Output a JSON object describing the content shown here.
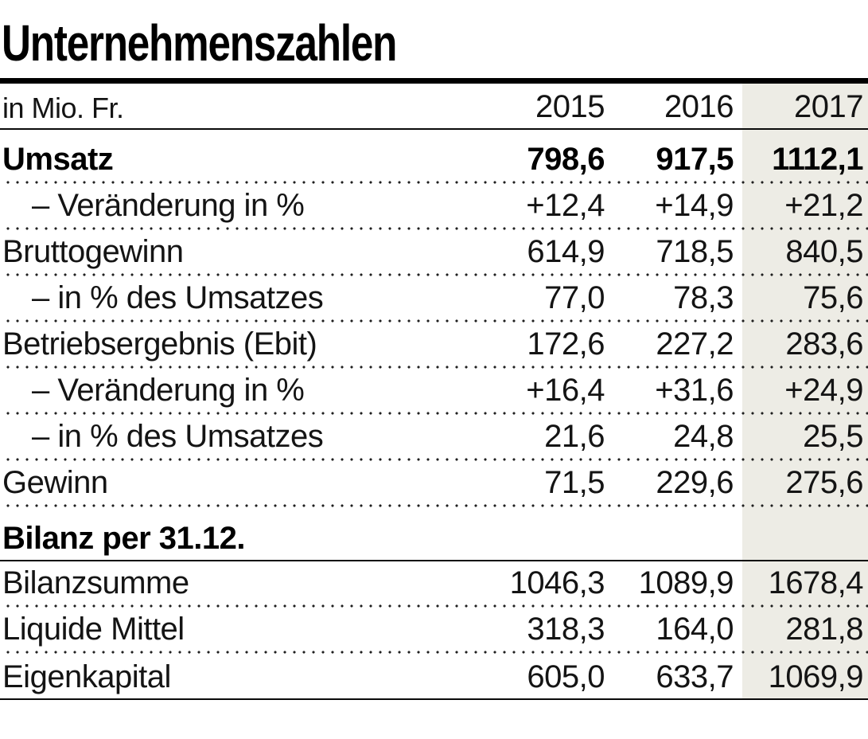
{
  "page": {
    "title": "Unternehmenszahlen",
    "unit_label": "in Mio. Fr."
  },
  "colors": {
    "highlight_column_bg": "#EDECE5",
    "text": "#141414",
    "rule": "#000000",
    "background": "#FFFFFF"
  },
  "chart_data": {
    "type": "table",
    "title": "Unternehmenszahlen",
    "unit": "in Mio. Fr.",
    "columns": [
      "2015",
      "2016",
      "2017"
    ],
    "highlighted_column": "2017",
    "section_headers": [
      "Bilanz per 31.12."
    ],
    "rows": [
      {
        "label": "Umsatz",
        "style": "bold",
        "indent": false,
        "values": [
          798.6,
          917.5,
          1112.1
        ],
        "display": [
          "798,6",
          "917,5",
          "1112,1"
        ]
      },
      {
        "label": "– Veränderung in %",
        "style": "normal",
        "indent": true,
        "values": [
          12.4,
          14.9,
          21.2
        ],
        "display": [
          "+12,4",
          "+14,9",
          "+21,2"
        ]
      },
      {
        "label": "Bruttogewinn",
        "style": "normal",
        "indent": false,
        "values": [
          614.9,
          718.5,
          840.5
        ],
        "display": [
          "614,9",
          "718,5",
          "840,5"
        ]
      },
      {
        "label": "– in % des Umsatzes",
        "style": "normal",
        "indent": true,
        "values": [
          77.0,
          78.3,
          75.6
        ],
        "display": [
          "77,0",
          "78,3",
          "75,6"
        ]
      },
      {
        "label": "Betriebsergebnis (Ebit)",
        "style": "normal",
        "indent": false,
        "values": [
          172.6,
          227.2,
          283.6
        ],
        "display": [
          "172,6",
          "227,2",
          "283,6"
        ]
      },
      {
        "label": "– Veränderung in %",
        "style": "normal",
        "indent": true,
        "values": [
          16.4,
          31.6,
          24.9
        ],
        "display": [
          "+16,4",
          "+31,6",
          "+24,9"
        ]
      },
      {
        "label": "– in % des Umsatzes",
        "style": "normal",
        "indent": true,
        "values": [
          21.6,
          24.8,
          25.5
        ],
        "display": [
          "21,6",
          "24,8",
          "25,5"
        ]
      },
      {
        "label": "Gewinn",
        "style": "normal",
        "indent": false,
        "values": [
          71.5,
          229.6,
          275.6
        ],
        "display": [
          "71,5",
          "229,6",
          "275,6"
        ]
      },
      {
        "label": "Bilanz per 31.12.",
        "style": "section-header",
        "indent": false,
        "values": [],
        "display": []
      },
      {
        "label": "Bilanzsumme",
        "style": "normal",
        "indent": false,
        "values": [
          1046.3,
          1089.9,
          1678.4
        ],
        "display": [
          "1046,3",
          "1089,9",
          "1678,4"
        ]
      },
      {
        "label": "Liquide Mittel",
        "style": "normal",
        "indent": false,
        "values": [
          318.3,
          164.0,
          281.8
        ],
        "display": [
          "318,3",
          "164,0",
          "281,8"
        ]
      },
      {
        "label": "Eigenkapital",
        "style": "normal",
        "indent": false,
        "values": [
          605.0,
          633.7,
          1069.9
        ],
        "display": [
          "605,0",
          "633,7",
          "1069,9"
        ]
      }
    ]
  }
}
